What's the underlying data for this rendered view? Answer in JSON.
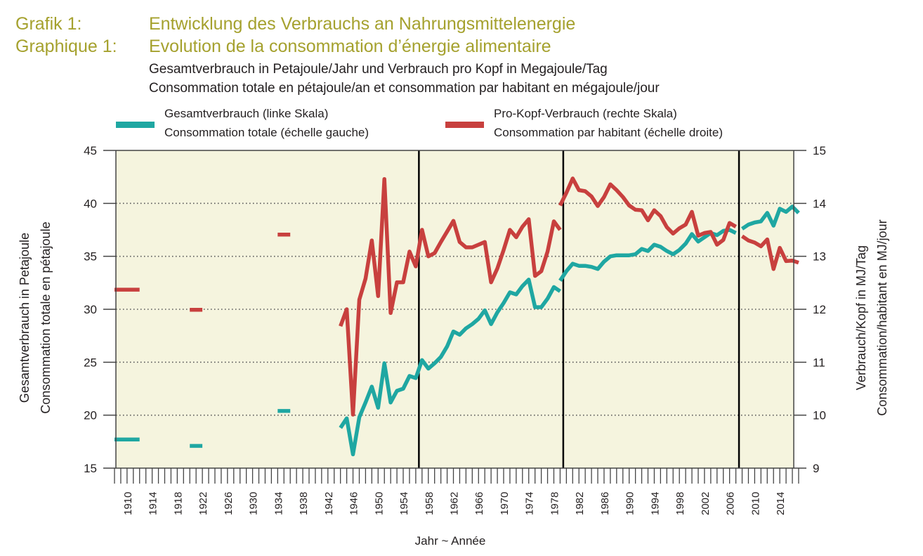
{
  "header": {
    "label_de": "Grafik 1:",
    "label_fr": "Graphique 1:",
    "title_de": "Entwicklung des Verbrauchs an Nahrungsmittelenergie",
    "title_fr": "Evolution de la consommation d’énergie alimentaire",
    "subtitle_de": "Gesamtverbrauch in Petajoule/Jahr und Verbrauch pro Kopf in Megajoule/Tag",
    "subtitle_fr": "Consommation totale en pétajoule/an et consommation par habitant en mégajoule/jour"
  },
  "legend": {
    "total_de": "Gesamtverbrauch (linke Skala)",
    "total_fr": "Consommation totale (échelle gauche)",
    "percap_de": "Pro-Kopf-Verbrauch (rechte Skala)",
    "percap_fr": "Consommation par habitant (échelle droite)"
  },
  "axes": {
    "left_de": "Gesamtverbrauch in Petajoule",
    "left_fr": "Consommation totale en pétajoule",
    "right_de": "Verbrauch/Kopf in MJ/Tag",
    "right_fr": "Consommation/habitant en MJ/jour",
    "x_label": "Jahr ~ Année"
  },
  "colors": {
    "total": "#1fa7a2",
    "percap": "#c8403e",
    "plot_bg": "#f5f4de",
    "grid": "#555555"
  },
  "chart_data": {
    "type": "line",
    "title": "Entwicklung des Verbrauchs an Nahrungsmittelenergie",
    "xlabel": "Jahr ~ Année",
    "ylabel_left": "Gesamtverbrauch in Petajoule",
    "ylabel_right": "Verbrauch/Kopf in MJ/Tag",
    "xlim": [
      1908,
      2016
    ],
    "ylim_left": [
      15,
      45
    ],
    "ylim_right": [
      9,
      15
    ],
    "yticks_left": [
      15,
      20,
      25,
      30,
      35,
      40,
      45
    ],
    "yticks_right": [
      9,
      10,
      11,
      12,
      13,
      14,
      15
    ],
    "xticks": [
      1910,
      1914,
      1918,
      1922,
      1926,
      1930,
      1934,
      1938,
      1942,
      1946,
      1950,
      1954,
      1958,
      1962,
      1966,
      1970,
      1974,
      1978,
      1982,
      1986,
      1990,
      1994,
      1998,
      2002,
      2006,
      2010,
      2014
    ],
    "grid": "horizontal dotted",
    "vertical_markers": [
      1956.5,
      1979.5,
      2007.5
    ],
    "series": [
      {
        "name": "Gesamtverbrauch (linke Skala)",
        "axis": "left",
        "segments": [
          [
            [
              1908,
              17.7
            ],
            [
              1912,
              17.7
            ]
          ],
          [
            [
              1920,
              17.1
            ],
            [
              1922,
              17.1
            ]
          ],
          [
            [
              1934,
              20.4
            ],
            [
              1936,
              20.4
            ]
          ],
          [
            [
              1944,
              18.8
            ],
            [
              1945,
              19.7
            ],
            [
              1946,
              16.3
            ],
            [
              1947,
              19.8
            ],
            [
              1948,
              21.2
            ],
            [
              1949,
              22.7
            ],
            [
              1950,
              20.7
            ],
            [
              1951,
              24.9
            ],
            [
              1952,
              21.2
            ],
            [
              1953,
              22.3
            ],
            [
              1954,
              22.5
            ],
            [
              1955,
              23.7
            ],
            [
              1956,
              23.5
            ],
            [
              1957,
              25.2
            ],
            [
              1958,
              24.4
            ],
            [
              1959,
              24.9
            ],
            [
              1960,
              25.5
            ],
            [
              1961,
              26.5
            ],
            [
              1962,
              27.9
            ],
            [
              1963,
              27.6
            ],
            [
              1964,
              28.2
            ],
            [
              1965,
              28.6
            ],
            [
              1966,
              29.1
            ],
            [
              1967,
              29.9
            ],
            [
              1968,
              28.6
            ],
            [
              1969,
              29.7
            ],
            [
              1970,
              30.6
            ],
            [
              1971,
              31.6
            ],
            [
              1972,
              31.4
            ],
            [
              1973,
              32.2
            ],
            [
              1974,
              32.8
            ],
            [
              1975,
              30.2
            ],
            [
              1976,
              30.2
            ],
            [
              1977,
              31.0
            ],
            [
              1978,
              32.1
            ],
            [
              1979,
              31.7
            ]
          ],
          [
            [
              1979,
              32.7
            ],
            [
              1980,
              33.6
            ],
            [
              1981,
              34.3
            ],
            [
              1982,
              34.1
            ],
            [
              1983,
              34.1
            ],
            [
              1984,
              34.0
            ],
            [
              1985,
              33.8
            ],
            [
              1986,
              34.5
            ],
            [
              1987,
              35.0
            ],
            [
              1988,
              35.1
            ],
            [
              1989,
              35.1
            ],
            [
              1990,
              35.1
            ],
            [
              1991,
              35.2
            ],
            [
              1992,
              35.7
            ],
            [
              1993,
              35.5
            ],
            [
              1994,
              36.1
            ],
            [
              1995,
              35.9
            ],
            [
              1996,
              35.5
            ],
            [
              1997,
              35.2
            ],
            [
              1998,
              35.6
            ],
            [
              1999,
              36.2
            ],
            [
              2000,
              37.1
            ],
            [
              2001,
              36.4
            ],
            [
              2002,
              36.8
            ],
            [
              2003,
              37.2
            ],
            [
              2004,
              37.0
            ],
            [
              2005,
              37.4
            ],
            [
              2006,
              37.5
            ],
            [
              2007,
              37.2
            ]
          ],
          [
            [
              2008,
              37.6
            ],
            [
              2009,
              38.0
            ],
            [
              2010,
              38.2
            ],
            [
              2011,
              38.3
            ],
            [
              2012,
              39.1
            ],
            [
              2013,
              37.9
            ],
            [
              2014,
              39.5
            ],
            [
              2015,
              39.2
            ],
            [
              2016,
              39.7
            ],
            [
              2017,
              39.1
            ]
          ]
        ]
      },
      {
        "name": "Pro-Kopf-Verbrauch (rechte Skala)",
        "axis": "right",
        "segments": [
          [
            [
              1908,
              12.37
            ],
            [
              1912,
              12.37
            ]
          ],
          [
            [
              1920,
              11.99
            ],
            [
              1922,
              11.99
            ]
          ],
          [
            [
              1934,
              13.41
            ],
            [
              1936,
              13.41
            ]
          ],
          [
            [
              1944,
              11.68
            ],
            [
              1945,
              12.0
            ],
            [
              1946,
              10.01
            ],
            [
              1947,
              12.18
            ],
            [
              1948,
              12.58
            ],
            [
              1949,
              13.3
            ],
            [
              1950,
              12.25
            ],
            [
              1951,
              14.46
            ],
            [
              1952,
              11.93
            ],
            [
              1953,
              12.51
            ],
            [
              1954,
              12.51
            ],
            [
              1955,
              13.09
            ],
            [
              1956,
              12.81
            ],
            [
              1957,
              13.5
            ],
            [
              1958,
              13.0
            ],
            [
              1959,
              13.06
            ],
            [
              1960,
              13.27
            ],
            [
              1961,
              13.47
            ],
            [
              1962,
              13.67
            ],
            [
              1963,
              13.27
            ],
            [
              1964,
              13.17
            ],
            [
              1965,
              13.17
            ],
            [
              1966,
              13.22
            ],
            [
              1967,
              13.27
            ],
            [
              1968,
              12.51
            ],
            [
              1969,
              12.77
            ],
            [
              1970,
              13.12
            ],
            [
              1971,
              13.5
            ],
            [
              1972,
              13.36
            ],
            [
              1973,
              13.56
            ],
            [
              1974,
              13.7
            ],
            [
              1975,
              12.63
            ],
            [
              1976,
              12.72
            ],
            [
              1977,
              13.09
            ],
            [
              1978,
              13.66
            ],
            [
              1979,
              13.5
            ]
          ],
          [
            [
              1979,
              13.96
            ],
            [
              1980,
              14.2
            ],
            [
              1981,
              14.47
            ],
            [
              1982,
              14.25
            ],
            [
              1983,
              14.23
            ],
            [
              1984,
              14.13
            ],
            [
              1985,
              13.95
            ],
            [
              1986,
              14.12
            ],
            [
              1987,
              14.36
            ],
            [
              1988,
              14.25
            ],
            [
              1989,
              14.12
            ],
            [
              1990,
              13.96
            ],
            [
              1991,
              13.88
            ],
            [
              1992,
              13.87
            ],
            [
              1993,
              13.68
            ],
            [
              1994,
              13.87
            ],
            [
              1995,
              13.76
            ],
            [
              1996,
              13.55
            ],
            [
              1997,
              13.43
            ],
            [
              1998,
              13.53
            ],
            [
              1999,
              13.6
            ],
            [
              2000,
              13.84
            ],
            [
              2001,
              13.39
            ],
            [
              2002,
              13.44
            ],
            [
              2003,
              13.46
            ],
            [
              2004,
              13.22
            ],
            [
              2005,
              13.31
            ],
            [
              2006,
              13.63
            ],
            [
              2007,
              13.56
            ]
          ],
          [
            [
              2008,
              13.38
            ],
            [
              2009,
              13.3
            ],
            [
              2010,
              13.26
            ],
            [
              2011,
              13.19
            ],
            [
              2012,
              13.32
            ],
            [
              2013,
              12.76
            ],
            [
              2014,
              13.16
            ],
            [
              2015,
              12.91
            ],
            [
              2016,
              12.92
            ],
            [
              2017,
              12.88
            ]
          ]
        ]
      }
    ]
  }
}
